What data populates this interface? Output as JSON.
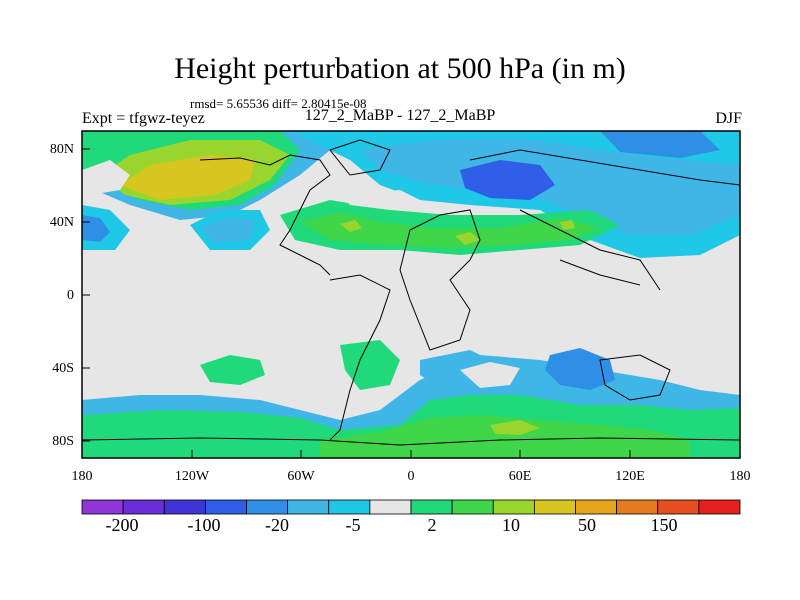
{
  "header": {
    "title": "Height perturbation at 500 hPa (in m)",
    "stats": "rmsd= 5.65536 diff= 2.80415e-08",
    "experiment": "Expt = tfgwz-teyez",
    "comparison": "127_2_MaBP - 127_2_MaBP",
    "season": "DJF"
  },
  "axes": {
    "y_ticks": [
      "80N",
      "40N",
      "0",
      "40S",
      "80S"
    ],
    "x_ticks": [
      "180",
      "120W",
      "60W",
      "0",
      "60E",
      "120E",
      "180"
    ]
  },
  "colorbar": {
    "colors": [
      "#8f36d9",
      "#6a2ed9",
      "#3f35d6",
      "#2f5fe6",
      "#2f8fe6",
      "#3fb6e6",
      "#1fc8e6",
      "#e6e6e6",
      "#1fd97a",
      "#3fd64a",
      "#98d62e",
      "#d6c61f",
      "#e6a51f",
      "#e67a1f",
      "#e64f1f",
      "#e61f1f"
    ],
    "labels": [
      "-200",
      "-100",
      "-20",
      "-5",
      "2",
      "10",
      "50",
      "150"
    ]
  }
}
